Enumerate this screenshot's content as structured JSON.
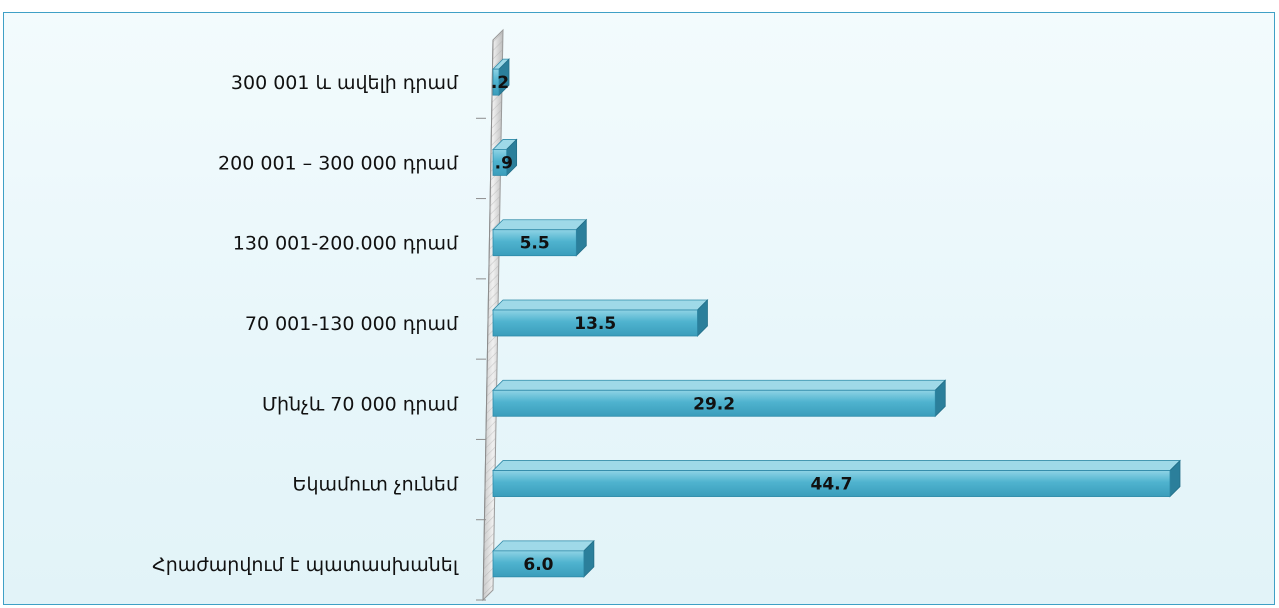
{
  "colors": {
    "bar_front": "#4fb3cf",
    "bar_top": "#9fd9e8",
    "bar_side": "#2b7f9b",
    "frame_border": "#3fa0c6",
    "wall": "#d3d3d3"
  },
  "chart_data": {
    "type": "bar",
    "orientation": "horizontal",
    "style": "3d",
    "title": "",
    "xlabel": "",
    "ylabel": "",
    "categories": [
      "300 001 և ավելի դրամ",
      "200 001 – 300 000 դրամ",
      "130 001-200.000 դրամ",
      "70 001-130 000 դրամ",
      "Մինչև 70 000 դրամ",
      "Եկամուտ չունեմ",
      "Հրաժարվում է պատասխանել"
    ],
    "values": [
      0.2,
      0.9,
      5.5,
      13.5,
      29.2,
      44.7,
      6.0
    ],
    "value_labels": [
      ".2",
      ".9",
      "5.5",
      "13.5",
      "29.2",
      "44.7",
      "6.0"
    ],
    "xlim": [
      0,
      45
    ],
    "grid": false,
    "legend": "none"
  }
}
